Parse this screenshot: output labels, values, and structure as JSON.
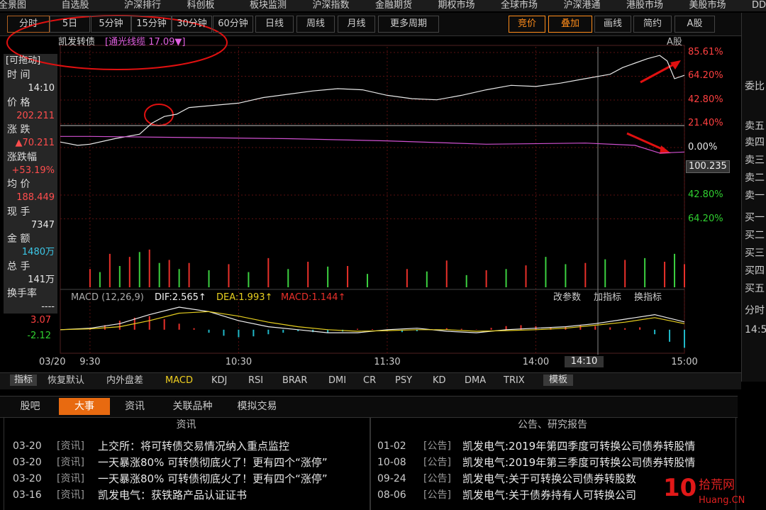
{
  "menu": [
    "全景图",
    "自选股",
    "沪深排行",
    "科创板",
    "板块监测",
    "沪深指数",
    "金融期货",
    "期权市场",
    "全球市场",
    "沪深港通",
    "港股市场",
    "美股市场",
    "DDE"
  ],
  "toolbar": {
    "periods": [
      "分时",
      "5日",
      "5分钟",
      "15分钟",
      "30分钟",
      "60分钟",
      "日线",
      "周线",
      "月线",
      "更多周期"
    ],
    "right": [
      "竞价",
      "叠加",
      "画线",
      "简约",
      "A股"
    ]
  },
  "legend": {
    "name": "凯发转债",
    "overlay": "[通光线缆 17.09▼]",
    "market": "A股",
    "drag": "[可拖动]"
  },
  "info": [
    {
      "label": "时 间",
      "value": "14:10",
      "color": "#e8e8e8"
    },
    {
      "label": "价 格",
      "value": "202.211",
      "color": "#ff4d4d"
    },
    {
      "label": "涨 跌",
      "value": "▲70.211",
      "color": "#ff4d4d"
    },
    {
      "label": "涨跌幅",
      "value": "+53.19%",
      "color": "#ff4d4d"
    },
    {
      "label": "均 价",
      "value": "188.449",
      "color": "#ff4d4d"
    },
    {
      "label": "现 手",
      "value": "7347",
      "color": "#e8e8e8"
    },
    {
      "label": "金 额",
      "value": "1480万",
      "color": "#3cc8e8"
    },
    {
      "label": "总 手",
      "value": "141万",
      "color": "#e8e8e8"
    },
    {
      "label": "换手率",
      "value": "----",
      "color": "#e8e8e8"
    }
  ],
  "chart": {
    "type": "line",
    "grid": true,
    "date": "03/20",
    "xlim": [
      -12,
      240
    ],
    "xticks": [
      {
        "value": 0,
        "label": "9:30"
      },
      {
        "value": 60,
        "label": "10:30"
      },
      {
        "value": 120,
        "label": "11:30"
      },
      {
        "value": 180,
        "label": "14:00"
      },
      {
        "value": 240,
        "label": "15:00"
      }
    ],
    "ylim": [
      -90.7,
      90.7
    ],
    "yticks": [
      {
        "value": 85.61,
        "label": "85.61%"
      },
      {
        "value": 64.2,
        "label": "64.20%"
      },
      {
        "value": 42.8,
        "label": "42.80%"
      },
      {
        "value": 21.4,
        "label": "21.40%"
      },
      {
        "value": 0,
        "label": "0.00%"
      },
      {
        "value": -42.8,
        "label": "42.80%"
      },
      {
        "value": -64.2,
        "label": "64.20%"
      }
    ],
    "crosshair": {
      "time": "14:10",
      "price": "100.235"
    },
    "series": [
      {
        "name": "凯发转债",
        "color": "#e8e8e8",
        "x": [
          -12,
          -5,
          0,
          10,
          20,
          25,
          30,
          35,
          40,
          50,
          60,
          70,
          80,
          90,
          100,
          110,
          120,
          130,
          140,
          150,
          160,
          170,
          180,
          190,
          200,
          210,
          215,
          220,
          225,
          230,
          233,
          236,
          240
        ],
        "values": [
          5,
          2,
          3,
          8,
          12,
          22,
          28,
          30,
          36,
          38,
          40,
          45,
          48,
          51,
          53,
          52,
          47,
          44,
          43,
          47,
          52,
          56,
          55,
          58,
          62,
          66,
          72,
          76,
          80,
          83,
          78,
          62,
          65
        ]
      },
      {
        "name": "通光线缆",
        "color": "#d050d0",
        "x": [
          -12,
          0,
          40,
          80,
          120,
          160,
          200,
          220,
          230,
          240
        ],
        "values": [
          10,
          10,
          9,
          8,
          6,
          3,
          4,
          2,
          -5,
          -4
        ]
      }
    ],
    "volume": {
      "vlim": [
        0,
        70
      ],
      "up": {
        "color": "#e8302a",
        "x": [
          0,
          8,
          16,
          24,
          32,
          40,
          56,
          72,
          88,
          104,
          128,
          144,
          160,
          176,
          200,
          216,
          232,
          240
        ],
        "values": [
          30,
          55,
          50,
          62,
          45,
          40,
          38,
          48,
          42,
          35,
          30,
          44,
          28,
          36,
          40,
          45,
          42,
          38
        ]
      },
      "down": {
        "color": "#3cd040",
        "x": [
          4,
          12,
          20,
          28,
          36,
          48,
          64,
          80,
          96,
          112,
          136,
          152,
          168,
          184,
          192,
          208,
          224,
          236
        ],
        "values": [
          25,
          35,
          58,
          40,
          30,
          28,
          25,
          30,
          34,
          22,
          26,
          20,
          30,
          50,
          38,
          46,
          48,
          55
        ]
      }
    },
    "macd": {
      "title": "MACD (12,26,9)",
      "dif_label": "DIF:2.565↑",
      "dea_label": "DEA:1.993↑",
      "macd_label": "MACD:1.144↑",
      "buttons": [
        "改参数",
        "加指标",
        "换指标"
      ],
      "ylim": [
        -7.1,
        8.2
      ],
      "yticks": [
        3.07,
        -2.12
      ],
      "x": [
        -12,
        0,
        12,
        24,
        36,
        48,
        60,
        72,
        84,
        96,
        108,
        120,
        132,
        144,
        156,
        168,
        180,
        192,
        204,
        216,
        228,
        240
      ],
      "dif": {
        "color": "#f0f0f0",
        "values": [
          0,
          0.5,
          2,
          5,
          7.5,
          6,
          3,
          1,
          0,
          -1,
          -1,
          0,
          0.5,
          -0.5,
          -1,
          0,
          0.5,
          1,
          2,
          3.5,
          5,
          2.6
        ]
      },
      "dea": {
        "color": "#e8d020",
        "values": [
          0,
          0.3,
          1,
          3,
          5.5,
          6,
          4.5,
          2.5,
          1,
          0,
          -0.5,
          -0.3,
          0,
          0,
          -0.5,
          -0.3,
          0,
          0.5,
          1.5,
          2.5,
          4,
          2
        ]
      },
      "hist": {
        "pos_color": "#e8302a",
        "neg_color": "#20b8c8",
        "x": [
          0,
          6,
          12,
          18,
          24,
          30,
          36,
          42,
          48,
          54,
          60,
          66,
          72,
          78,
          84,
          90,
          96,
          102,
          108,
          114,
          120,
          126,
          132,
          138,
          144,
          150,
          156,
          162,
          168,
          174,
          180,
          186,
          192,
          198,
          204,
          210,
          216,
          222,
          228,
          234,
          240
        ],
        "values": [
          0.5,
          1.5,
          3,
          4,
          4.5,
          3.5,
          2,
          0.5,
          -1,
          -2,
          -2.5,
          -2.2,
          -1.5,
          -1,
          -0.5,
          -0.8,
          -1,
          -0.6,
          0.3,
          0.2,
          -0.3,
          -0.8,
          -0.5,
          0.2,
          0.5,
          0.3,
          0.1,
          0.6,
          1.2,
          1.5,
          1.2,
          0.8,
          1,
          1.4,
          1.2,
          0.8,
          0.5,
          0.8,
          -1.5,
          -4,
          -6
        ]
      }
    }
  },
  "indicator_tabs": {
    "button": "指标",
    "items": [
      "恢复默认",
      "内外盘差",
      "MACD",
      "KDJ",
      "RSI",
      "BRAR",
      "DMI",
      "CR",
      "PSY",
      "KD",
      "DMA",
      "TRIX"
    ],
    "template": "模板"
  },
  "news_tabs": [
    "股吧",
    "大事",
    "资讯",
    "关联品种",
    "模拟交易"
  ],
  "news": {
    "title": "资讯",
    "rows": [
      [
        "03-20",
        "[资讯]",
        "上交所：将可转债交易情况纳入重点监控"
      ],
      [
        "03-20",
        "[资讯]",
        "一天暴涨80% 可转债彻底火了！更有四个“涨停”"
      ],
      [
        "03-20",
        "[资讯]",
        "一天暴涨80% 可转债彻底火了！更有四个“涨停”"
      ],
      [
        "03-16",
        "[资讯]",
        "凯发电气：获铁路产品认证证书"
      ]
    ]
  },
  "notices": {
    "title": "公告、研究报告",
    "rows": [
      [
        "01-02",
        "[公告]",
        "凯发电气:2019年第四季度可转换公司债券转股情"
      ],
      [
        "10-08",
        "[公告]",
        "凯发电气:2019年第三季度可转换公司债券转股情"
      ],
      [
        "09-24",
        "[公告]",
        "凯发电气:关于可转换公司债券转股数"
      ],
      [
        "08-06",
        "[公告]",
        "凯发电气:关于债券持有人可转换公司"
      ]
    ]
  },
  "sidebar": [
    "委比",
    "卖五",
    "卖四",
    "卖三",
    "卖二",
    "卖一",
    "买一",
    "买二",
    "买三",
    "买四",
    "买五",
    "分时",
    "14:5"
  ],
  "watermark": {
    "logo": "10",
    "name": "拾荒网",
    "site": "Huang.CN"
  }
}
